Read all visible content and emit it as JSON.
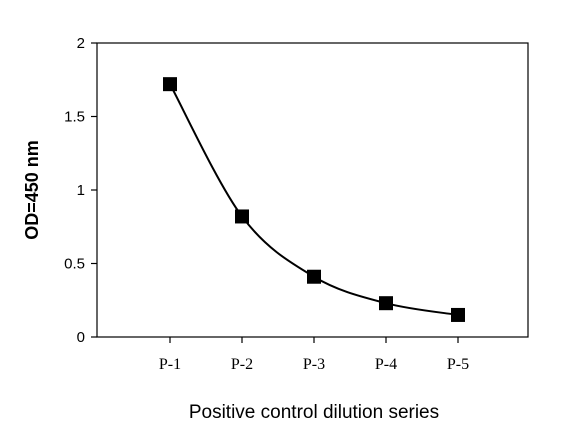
{
  "chart_data": {
    "type": "line",
    "title": "",
    "xlabel": "Positive control dilution series",
    "ylabel": "OD=450 nm",
    "categories": [
      "P-1",
      "P-2",
      "P-3",
      "P-4",
      "P-5"
    ],
    "series": [
      {
        "values": [
          1.72,
          0.82,
          0.41,
          0.23,
          0.15
        ],
        "color": "#000000",
        "marker": "square",
        "line": "smooth"
      }
    ],
    "ylim": [
      0,
      2
    ],
    "yticks": [
      "0",
      "0.5",
      "1",
      "1.5",
      "2"
    ],
    "grid": false,
    "legend": "none"
  }
}
